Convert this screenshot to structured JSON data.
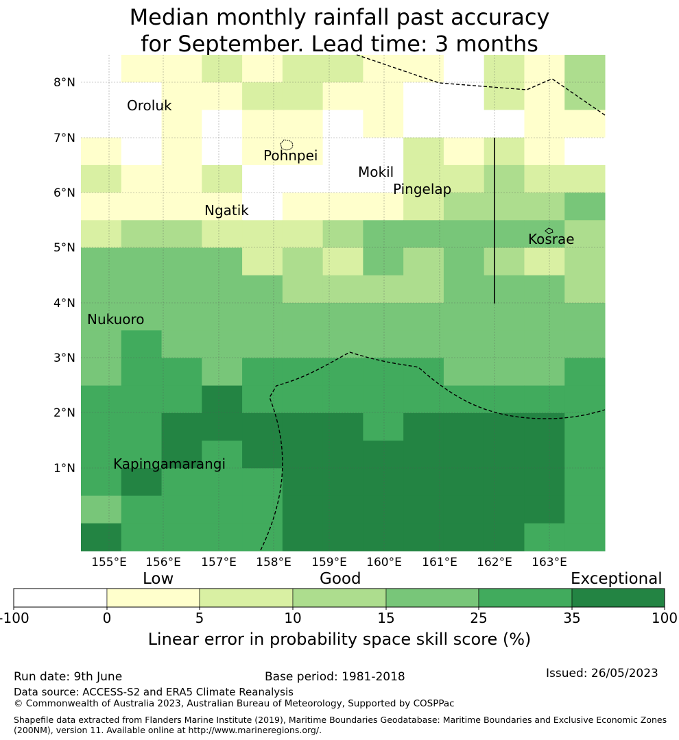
{
  "title_line1": "Median monthly rainfall past accuracy",
  "title_line2": "for September. Lead time: 3 months",
  "map": {
    "lon_labels": [
      "155°E",
      "156°E",
      "157°E",
      "158°E",
      "159°E",
      "160°E",
      "161°E",
      "162°E",
      "163°E"
    ],
    "lat_labels": [
      "8°N",
      "7°N",
      "6°N",
      "5°N",
      "4°N",
      "3°N",
      "2°N",
      "1°N"
    ],
    "places": [
      {
        "name": "Oroluk"
      },
      {
        "name": "Pohnpei"
      },
      {
        "name": "Mokil"
      },
      {
        "name": "Pingelap"
      },
      {
        "name": "Ngatik"
      },
      {
        "name": "Kosrae"
      },
      {
        "name": "Nukuoro"
      },
      {
        "name": "Kapingamarangi"
      }
    ],
    "grid_categories": [
      [
        0,
        1,
        1,
        2,
        1,
        2,
        2,
        1,
        1,
        0,
        2,
        1,
        3
      ],
      [
        0,
        0,
        1,
        1,
        2,
        2,
        1,
        1,
        0,
        0,
        2,
        1,
        3
      ],
      [
        0,
        0,
        1,
        0,
        1,
        1,
        0,
        1,
        0,
        0,
        0,
        1,
        1
      ],
      [
        1,
        0,
        1,
        0,
        1,
        1,
        0,
        0,
        2,
        1,
        2,
        1,
        0
      ],
      [
        2,
        1,
        1,
        2,
        0,
        0,
        0,
        0,
        2,
        2,
        3,
        2,
        2
      ],
      [
        1,
        1,
        1,
        1,
        0,
        1,
        1,
        1,
        2,
        3,
        3,
        3,
        4
      ],
      [
        2,
        3,
        3,
        2,
        2,
        2,
        3,
        4,
        4,
        4,
        4,
        4,
        3
      ],
      [
        4,
        4,
        4,
        4,
        2,
        3,
        2,
        4,
        3,
        4,
        3,
        2,
        3
      ],
      [
        4,
        4,
        4,
        4,
        4,
        3,
        3,
        3,
        3,
        4,
        4,
        4,
        3
      ],
      [
        4,
        4,
        4,
        4,
        4,
        4,
        4,
        4,
        4,
        4,
        4,
        4,
        4
      ],
      [
        4,
        5,
        4,
        4,
        4,
        4,
        4,
        4,
        4,
        4,
        4,
        4,
        4
      ],
      [
        4,
        5,
        5,
        4,
        5,
        5,
        5,
        5,
        5,
        4,
        4,
        4,
        5
      ],
      [
        5,
        5,
        5,
        6,
        5,
        5,
        5,
        5,
        5,
        5,
        5,
        5,
        5
      ],
      [
        5,
        5,
        6,
        6,
        6,
        6,
        6,
        5,
        6,
        6,
        6,
        6,
        5
      ],
      [
        5,
        5,
        6,
        5,
        6,
        6,
        6,
        6,
        6,
        6,
        6,
        6,
        5
      ],
      [
        5,
        6,
        5,
        5,
        5,
        6,
        6,
        6,
        6,
        6,
        6,
        6,
        5
      ],
      [
        4,
        5,
        5,
        5,
        5,
        6,
        6,
        6,
        6,
        6,
        6,
        6,
        5
      ],
      [
        6,
        5,
        5,
        5,
        5,
        6,
        6,
        6,
        6,
        6,
        6,
        5,
        5
      ]
    ]
  },
  "colorbar": {
    "colors": [
      "#ffffff",
      "#ffffcc",
      "#d9f0a3",
      "#addd8e",
      "#78c679",
      "#41ab5d",
      "#238443"
    ],
    "ticks": [
      "-100",
      "0",
      "5",
      "10",
      "15",
      "25",
      "35",
      "100"
    ],
    "category_labels": [
      "Low",
      "Good",
      "Exceptional"
    ],
    "title": "Linear error in probability space skill score (%)"
  },
  "footer": {
    "run_date": "Run date: 9th June",
    "base_period": "Base period: 1981-2018",
    "issued": "Issued: 26/05/2023",
    "data_source": "Data source: ACCESS-S2 and ERA5 Climate Reanalysis",
    "copyright": "© Commonwealth of Australia 2023, Australian Bureau of Meteorology, Supported by COSPPac",
    "shapefile": "Shapefile data extracted from Flanders Marine Institute (2019), Maritime Boundaries Geodatabase: Maritime Boundaries and Exclusive Economic Zones (200NM), version 11. Available online at http://www.marineregions.org/."
  }
}
